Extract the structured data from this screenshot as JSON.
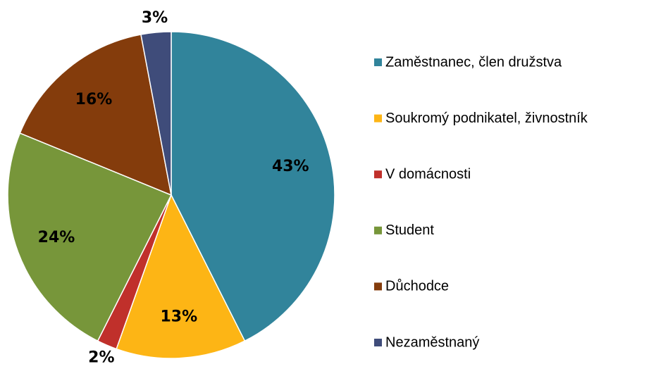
{
  "chart_data": {
    "type": "pie",
    "categories": [
      "Zaměstnanec, člen družstva",
      "Soukromý podnikatel, živnostník",
      "V domácnosti",
      "Student",
      "Důchodce",
      "Nezaměstnaný"
    ],
    "values": [
      43,
      13,
      2,
      24,
      16,
      3
    ],
    "value_labels": [
      "43%",
      "13%",
      "2%",
      "24%",
      "16%",
      "3%"
    ],
    "colors": [
      "#31849b",
      "#fdb515",
      "#c0302b",
      "#77963a",
      "#843c0c",
      "#3f4c7a"
    ],
    "legend": "right"
  }
}
